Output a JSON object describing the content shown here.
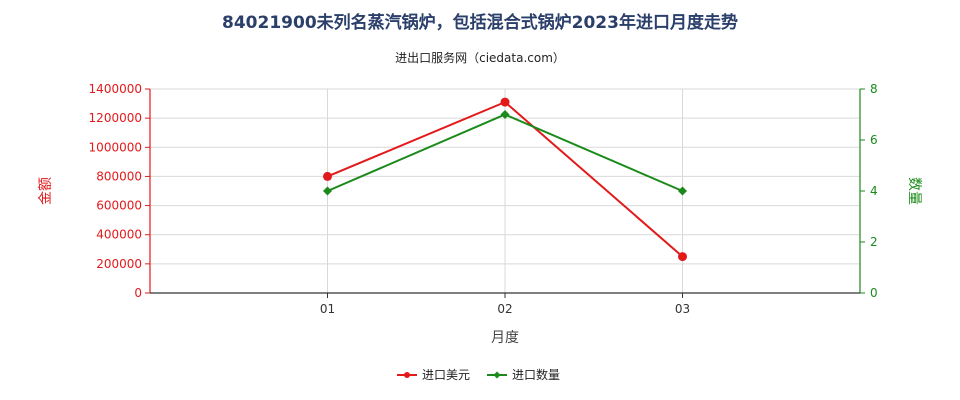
{
  "chart_data": {
    "type": "line",
    "title": "84021900未列名蒸汽锅炉，包括混合式锅炉2023年进口月度走势",
    "subtitle": "进出口服务网（ciedata.com）",
    "xlabel": "月度",
    "ylabel_left": "金额",
    "ylabel_right": "数量",
    "categories": [
      "01",
      "02",
      "03"
    ],
    "ylim_left": [
      0,
      1400000
    ],
    "yticks_left": [
      "0",
      "200000",
      "400000",
      "600000",
      "800000",
      "1000000",
      "1200000",
      "1400000"
    ],
    "ylim_right": [
      0,
      8
    ],
    "yticks_right": [
      "0",
      "2",
      "4",
      "6",
      "8"
    ],
    "grid": true,
    "legend_position": "bottom",
    "series": [
      {
        "name": "进口美元",
        "axis": "left",
        "color": "#e31a1c",
        "marker": "circle",
        "values": [
          800000,
          1310000,
          250000
        ]
      },
      {
        "name": "进口数量",
        "axis": "right",
        "color": "#1a8a1a",
        "marker": "diamond",
        "values": [
          4,
          7,
          4
        ]
      }
    ],
    "colors": {
      "left_axis": "#e31a1c",
      "right_axis": "#1a8a1a",
      "grid": "#d9d9d9",
      "title": "#2b3f6b"
    }
  }
}
